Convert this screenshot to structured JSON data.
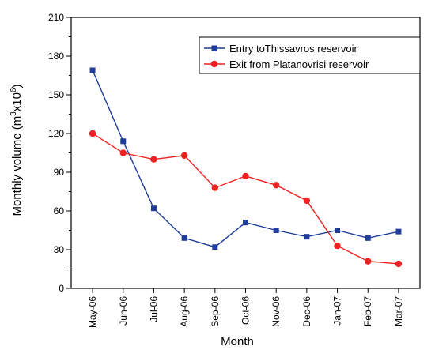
{
  "chart_data": {
    "type": "line",
    "xlabel": "Month",
    "ylabel": "Monthly volume (m",
    "ylabel_sup1": "3",
    "ylabel_mid": "x10",
    "ylabel_sup2": "6",
    "ylabel_end": ")",
    "ylim": [
      0,
      210
    ],
    "yticks": [
      0,
      30,
      60,
      90,
      120,
      150,
      180,
      210
    ],
    "grid": false,
    "legend_position": "top-right",
    "categories": [
      "May-06",
      "Jun-06",
      "Jul-06",
      "Aug-06",
      "Sep-06",
      "Oct-06",
      "Nov-06",
      "Dec-06",
      "Jan-07",
      "Feb-07",
      "Mar-07"
    ],
    "series": [
      {
        "name": "Entry toThissavros reservoir",
        "color": "#1f3d99",
        "marker": "square",
        "values": [
          169,
          114,
          62,
          39,
          32,
          51,
          45,
          40,
          45,
          39,
          44
        ]
      },
      {
        "name": "Exit from Platanovrisi reservoir",
        "color": "#ee2222",
        "marker": "circle",
        "values": [
          120,
          105,
          100,
          103,
          78,
          87,
          80,
          68,
          33,
          21,
          19
        ]
      }
    ]
  }
}
